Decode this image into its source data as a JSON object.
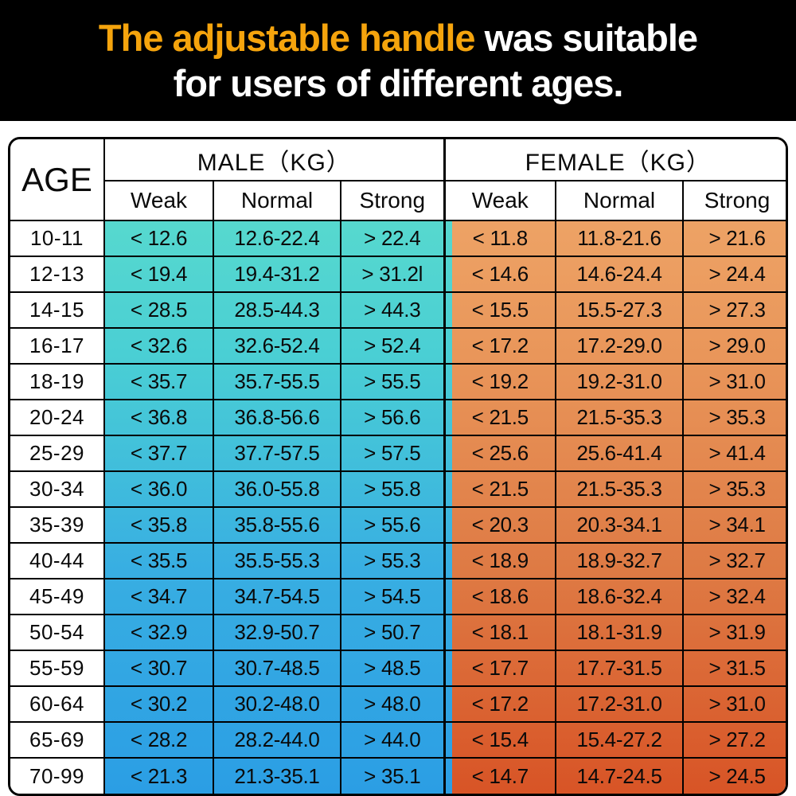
{
  "banner": {
    "title_highlight": "The adjustable handle",
    "title_rest": " was suitable",
    "title_line2": "for users of different ages.",
    "highlight_color": "#F5A40D",
    "background_color": "#000000",
    "text_color": "#ffffff"
  },
  "colors": {
    "male_gradient": [
      "#5EDECB",
      "#4ACFD4",
      "#38AEE2",
      "#2B9EE4"
    ],
    "female_gradient": [
      "#F0AA6C",
      "#E9965A",
      "#DE7A44",
      "#D85426"
    ],
    "border_color": "#000000",
    "header_background": "#ffffff"
  },
  "chart_data": {
    "type": "table",
    "title": "The adjustable handle was suitable for users of different ages.",
    "age_header": "AGE",
    "group_headers": {
      "male": "MALE（KG）",
      "female": "FEMALE（KG）"
    },
    "sub_headers": [
      "Weak",
      "Normal",
      "Strong"
    ],
    "unit": "KG",
    "rows": [
      {
        "age": "10-11",
        "male": [
          "< 12.6",
          "12.6-22.4",
          "> 22.4"
        ],
        "female": [
          "< 11.8",
          "11.8-21.6",
          "> 21.6"
        ]
      },
      {
        "age": "12-13",
        "male": [
          "< 19.4",
          "19.4-31.2",
          "> 31.2l"
        ],
        "female": [
          "< 14.6",
          "14.6-24.4",
          "> 24.4"
        ]
      },
      {
        "age": "14-15",
        "male": [
          "< 28.5",
          "28.5-44.3",
          "> 44.3"
        ],
        "female": [
          "< 15.5",
          "15.5-27.3",
          "> 27.3"
        ]
      },
      {
        "age": "16-17",
        "male": [
          "< 32.6",
          "32.6-52.4",
          "> 52.4"
        ],
        "female": [
          "< 17.2",
          "17.2-29.0",
          "> 29.0"
        ]
      },
      {
        "age": "18-19",
        "male": [
          "< 35.7",
          "35.7-55.5",
          "> 55.5"
        ],
        "female": [
          "< 19.2",
          "19.2-31.0",
          "> 31.0"
        ]
      },
      {
        "age": "20-24",
        "male": [
          "< 36.8",
          "36.8-56.6",
          "> 56.6"
        ],
        "female": [
          "< 21.5",
          "21.5-35.3",
          "> 35.3"
        ]
      },
      {
        "age": "25-29",
        "male": [
          "< 37.7",
          "37.7-57.5",
          "> 57.5"
        ],
        "female": [
          "< 25.6",
          "25.6-41.4",
          "> 41.4"
        ]
      },
      {
        "age": "30-34",
        "male": [
          "< 36.0",
          "36.0-55.8",
          "> 55.8"
        ],
        "female": [
          "< 21.5",
          "21.5-35.3",
          "> 35.3"
        ]
      },
      {
        "age": "35-39",
        "male": [
          "< 35.8",
          "35.8-55.6",
          "> 55.6"
        ],
        "female": [
          "< 20.3",
          "20.3-34.1",
          "> 34.1"
        ]
      },
      {
        "age": "40-44",
        "male": [
          "< 35.5",
          "35.5-55.3",
          "> 55.3"
        ],
        "female": [
          "< 18.9",
          "18.9-32.7",
          "> 32.7"
        ]
      },
      {
        "age": "45-49",
        "male": [
          "< 34.7",
          "34.7-54.5",
          "> 54.5"
        ],
        "female": [
          "< 18.6",
          "18.6-32.4",
          "> 32.4"
        ]
      },
      {
        "age": "50-54",
        "male": [
          "< 32.9",
          "32.9-50.7",
          "> 50.7"
        ],
        "female": [
          "< 18.1",
          "18.1-31.9",
          "> 31.9"
        ]
      },
      {
        "age": "55-59",
        "male": [
          "< 30.7",
          "30.7-48.5",
          "> 48.5"
        ],
        "female": [
          "< 17.7",
          "17.7-31.5",
          "> 31.5"
        ]
      },
      {
        "age": "60-64",
        "male": [
          "< 30.2",
          "30.2-48.0",
          "> 48.0"
        ],
        "female": [
          "< 17.2",
          "17.2-31.0",
          "> 31.0"
        ]
      },
      {
        "age": "65-69",
        "male": [
          "< 28.2",
          "28.2-44.0",
          "> 44.0"
        ],
        "female": [
          "< 15.4",
          "15.4-27.2",
          "> 27.2"
        ]
      },
      {
        "age": "70-99",
        "male": [
          "< 21.3",
          "21.3-35.1",
          "> 35.1"
        ],
        "female": [
          "< 14.7",
          "14.7-24.5",
          "> 24.5"
        ]
      }
    ]
  }
}
